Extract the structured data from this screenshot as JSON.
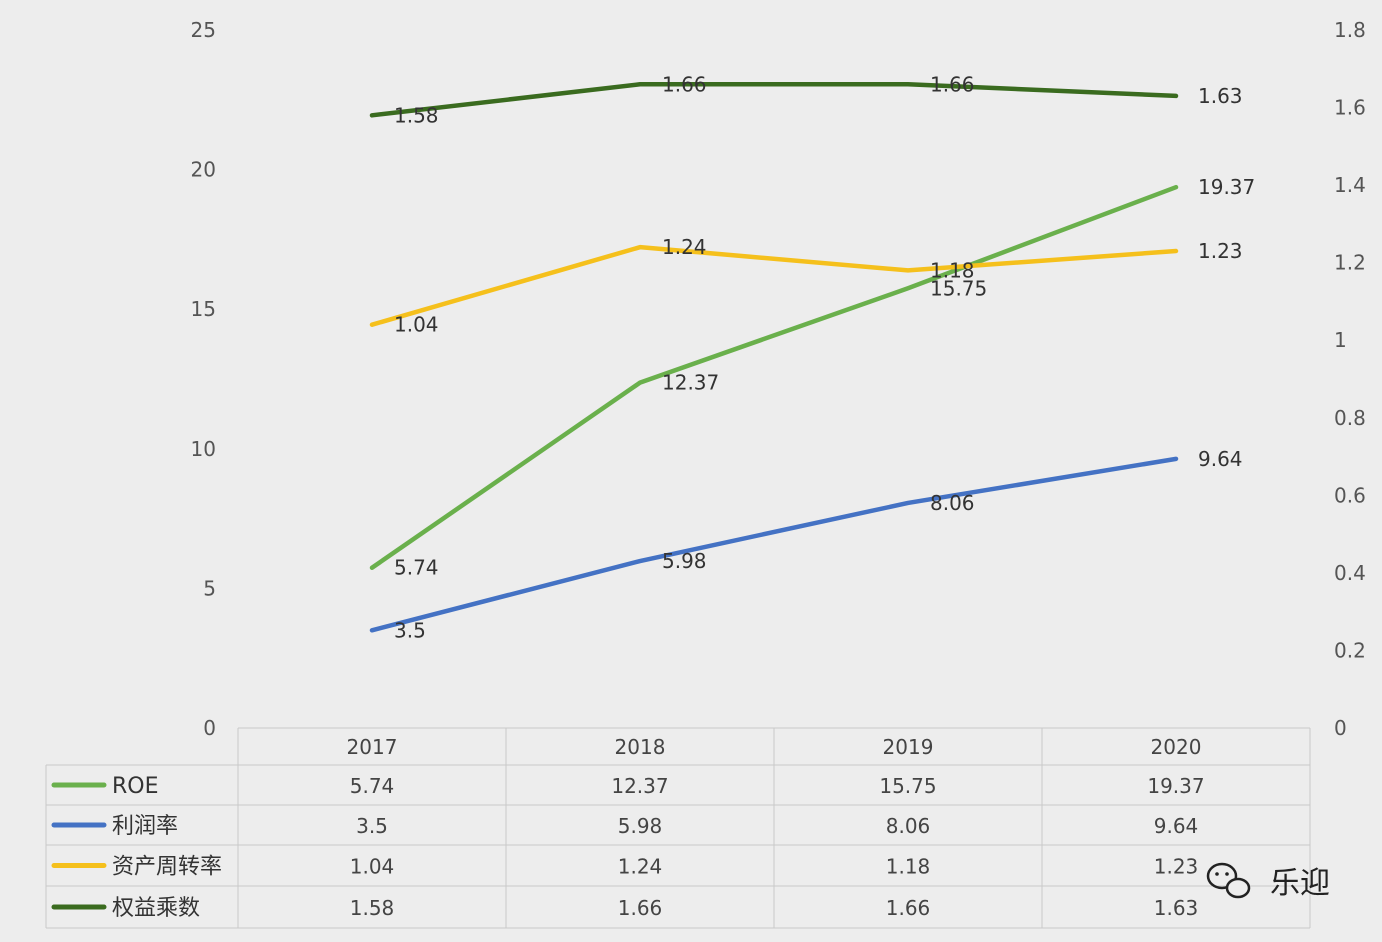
{
  "chart_data": {
    "type": "line",
    "categories": [
      "2017",
      "2018",
      "2019",
      "2020"
    ],
    "series": [
      {
        "name": "ROE",
        "axis": "left",
        "color": "#6ab04c",
        "values": [
          5.74,
          12.37,
          15.75,
          19.37
        ],
        "labels": [
          "5.74",
          "12.37",
          "15.75",
          "19.37"
        ]
      },
      {
        "name": "利润率",
        "axis": "left",
        "color": "#4472c4",
        "values": [
          3.5,
          5.98,
          8.06,
          9.64
        ],
        "labels": [
          "3.5",
          "5.98",
          "8.06",
          "9.64"
        ]
      },
      {
        "name": "资产周转率",
        "axis": "right",
        "color": "#f5c01c",
        "values": [
          1.04,
          1.24,
          1.18,
          1.23
        ],
        "labels": [
          "1.04",
          "1.24",
          "1.18",
          "1.23"
        ]
      },
      {
        "name": "权益乘数",
        "axis": "right",
        "color": "#3a6b1f",
        "values": [
          1.58,
          1.66,
          1.66,
          1.63
        ],
        "labels": [
          "1.58",
          "1.66",
          "1.66",
          "1.63"
        ]
      }
    ],
    "y_left": {
      "range": [
        0,
        25
      ],
      "ticks": [
        "0",
        "5",
        "10",
        "15",
        "20",
        "25"
      ]
    },
    "y_right": {
      "range": [
        0,
        1.8
      ],
      "ticks": [
        "0",
        "0.2",
        "0.4",
        "0.6",
        "0.8",
        "1",
        "1.2",
        "1.4",
        "1.6",
        "1.8"
      ]
    },
    "grid": false,
    "legend": "data-table-below"
  },
  "watermark": {
    "text": "乐迎",
    "icon": "wechat-icon"
  }
}
